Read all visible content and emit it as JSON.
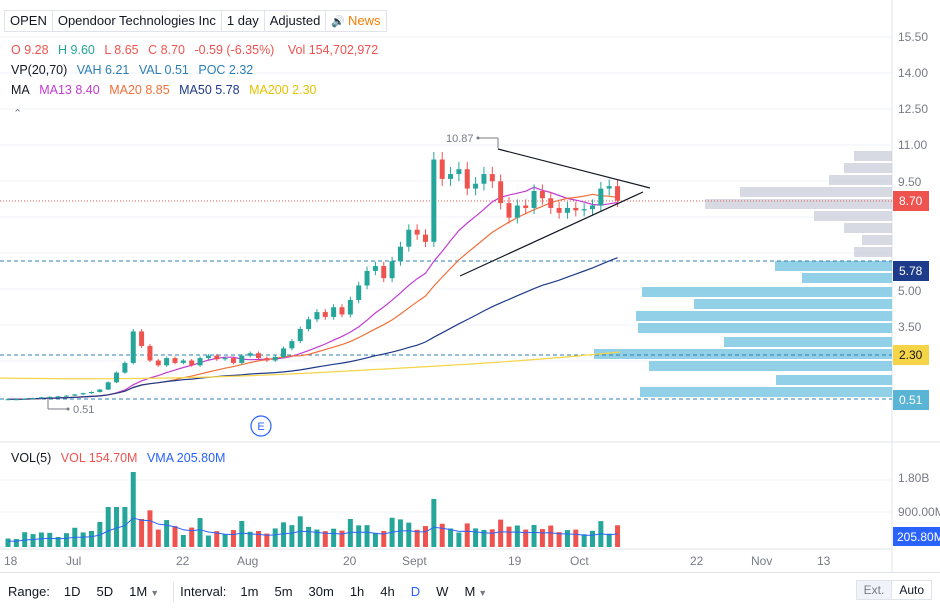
{
  "header": {
    "symbol": "OPEN",
    "company": "Opendoor Technologies Inc",
    "interval": "1 day",
    "adjustment": "Adjusted",
    "news_label": "News"
  },
  "legend": {
    "open": "O 9.28",
    "high": "H 9.60",
    "low": "L 8.65",
    "close": "C 8.70",
    "change": "-0.59 (-6.35%)",
    "volume": "Vol 154,702,972",
    "vp_name": "VP(20,70)",
    "vah": "VAH 6.21",
    "val": "VAL 0.51",
    "poc": "POC 2.32",
    "ma_name": "MA",
    "ma13": "MA13 8.40",
    "ma20": "MA20 8.85",
    "ma50": "MA50 5.78",
    "ma200": "MA200 2.30",
    "vol_name": "VOL(5)",
    "vol_value": "VOL 154.70M",
    "vma": "VMA 205.80M"
  },
  "price_axis": [
    "15.50",
    "14.00",
    "12.50",
    "11.00",
    "9.50",
    "5.00",
    "3.50"
  ],
  "price_badges": {
    "last": "8.70",
    "ma50": "5.78",
    "ma200": "2.30",
    "val": "0.51"
  },
  "volume_axis": [
    "1.80B",
    "900.00M"
  ],
  "volume_badge": "205.80M",
  "time_axis": [
    "18",
    "Jul",
    "22",
    "Aug",
    "20",
    "Sept",
    "19",
    "Oct",
    "22",
    "Nov",
    "13"
  ],
  "annotations": {
    "high_label": "10.87",
    "low_label": "0.51",
    "earnings_label": "E"
  },
  "toolbar": {
    "range_label": "Range:",
    "ranges": [
      "1D",
      "5D",
      "1M"
    ],
    "interval_label": "Interval:",
    "intervals": [
      "1m",
      "5m",
      "30m",
      "1h",
      "4h",
      "D",
      "W",
      "M"
    ],
    "active_interval": "D",
    "ext_label": "Ext.",
    "auto_label": "Auto"
  },
  "colors": {
    "up": "#26a69a",
    "down": "#ef5350",
    "ma13": "#c23bd4",
    "ma20": "#f0703a",
    "ma50": "#1e3a8a",
    "ma200": "#f5d547",
    "vp": "#7ec8e3",
    "vp_va": "#c9ccd9",
    "accent": "#2962ff"
  },
  "chart_data": {
    "type": "candlestick",
    "ohlc_approx_close": [
      0.5,
      0.5,
      0.52,
      0.55,
      0.58,
      0.6,
      0.62,
      0.65,
      0.7,
      0.75,
      0.8,
      0.9,
      1.2,
      1.6,
      2.0,
      3.3,
      2.7,
      2.1,
      1.9,
      2.2,
      2.0,
      2.1,
      1.9,
      2.2,
      2.3,
      2.15,
      2.2,
      2.0,
      2.3,
      2.4,
      2.2,
      2.1,
      2.25,
      2.6,
      2.9,
      3.4,
      3.8,
      4.1,
      3.9,
      4.3,
      4.0,
      4.6,
      5.2,
      5.8,
      6.0,
      5.5,
      6.2,
      6.8,
      7.5,
      7.3,
      7.0,
      10.4,
      9.6,
      9.8,
      10.0,
      9.2,
      9.4,
      9.8,
      9.5,
      8.6,
      8.0,
      8.5,
      8.4,
      9.1,
      8.8,
      8.4,
      8.2,
      8.4,
      8.3,
      8.35,
      8.5,
      9.2,
      9.3,
      8.7
    ],
    "ma13": [
      8.4
    ],
    "ma20": [
      8.85
    ],
    "ma50": [
      5.78
    ],
    "ma200": [
      2.3
    ],
    "volume_last": "154.70M",
    "ylim": [
      0.3,
      15.5
    ]
  }
}
